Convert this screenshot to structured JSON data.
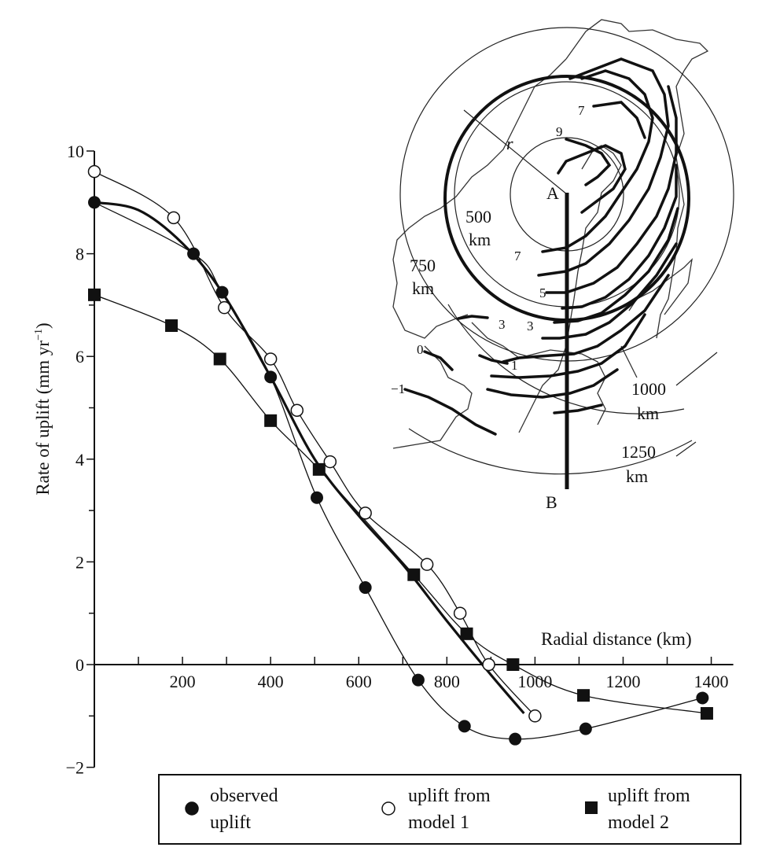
{
  "chart_data": {
    "type": "line",
    "title": "",
    "xlabel": "Radial distance (km)",
    "ylabel": "Rate of uplift (mm yr",
    "ylabel_sup": "−1",
    "ylabel_close": ")",
    "xlim": [
      0,
      1450
    ],
    "ylim": [
      -2,
      10
    ],
    "x_ticks": [
      200,
      400,
      600,
      800,
      1000,
      1200,
      1400
    ],
    "x_tick_labels": [
      "200",
      "400",
      "600",
      "800",
      "1000",
      "1200",
      "1400"
    ],
    "y_ticks": [
      10,
      8,
      6,
      4,
      2,
      0,
      -2
    ],
    "y_tick_labels": [
      "10",
      "8",
      "6",
      "4",
      "2",
      "0",
      "−2"
    ],
    "series": [
      {
        "name": "observed uplift",
        "marker": "filled-circle",
        "points": [
          [
            0,
            9.0
          ],
          [
            225,
            8.0
          ],
          [
            290,
            7.25
          ],
          [
            400,
            5.6
          ],
          [
            505,
            3.25
          ],
          [
            615,
            1.5
          ],
          [
            735,
            -0.3
          ],
          [
            840,
            -1.2
          ],
          [
            955,
            -1.45
          ],
          [
            1115,
            -1.25
          ],
          [
            1380,
            -0.65
          ]
        ]
      },
      {
        "name": "uplift from model 1",
        "marker": "open-circle",
        "points": [
          [
            0,
            9.6
          ],
          [
            180,
            8.7
          ],
          [
            295,
            6.95
          ],
          [
            400,
            5.95
          ],
          [
            460,
            4.95
          ],
          [
            535,
            3.95
          ],
          [
            615,
            2.95
          ],
          [
            755,
            1.95
          ],
          [
            830,
            1.0
          ],
          [
            895,
            0.0
          ],
          [
            1000,
            -1.0
          ]
        ]
      },
      {
        "name": "uplift from model 2",
        "marker": "filled-square",
        "points": [
          [
            0,
            7.2
          ],
          [
            175,
            6.6
          ],
          [
            285,
            5.95
          ],
          [
            400,
            4.75
          ],
          [
            510,
            3.8
          ],
          [
            725,
            1.75
          ],
          [
            845,
            0.6
          ],
          [
            950,
            0.0
          ],
          [
            1110,
            -0.6
          ],
          [
            1390,
            -0.95
          ]
        ]
      },
      {
        "name": "",
        "marker": "none",
        "style": "thick-line",
        "points": [
          [
            0,
            9.0
          ],
          [
            100,
            8.85
          ],
          [
            200,
            8.2
          ],
          [
            290,
            7.25
          ],
          [
            400,
            5.6
          ],
          [
            500,
            4.0
          ],
          [
            600,
            2.9
          ],
          [
            700,
            1.95
          ],
          [
            800,
            0.85
          ],
          [
            900,
            -0.2
          ],
          [
            975,
            -0.95
          ]
        ]
      }
    ],
    "legend": {
      "placement": "bottom",
      "entries": [
        {
          "marker": "filled-circle",
          "line1": "observed",
          "line2": "uplift"
        },
        {
          "marker": "open-circle",
          "line1": "uplift from",
          "line2": "model 1"
        },
        {
          "marker": "filled-square",
          "line1": "uplift from",
          "line2": "model 2"
        }
      ]
    },
    "inset_map": {
      "placement": "top-right",
      "ring_labels": [
        {
          "value": "500",
          "unit": "km"
        },
        {
          "value": "750",
          "unit": "km"
        },
        {
          "value": "1000",
          "unit": "km"
        },
        {
          "value": "1250",
          "unit": "km"
        }
      ],
      "radius_label": "r",
      "profile_labels": [
        "A",
        "B"
      ],
      "contour_labels": [
        "9",
        "7",
        "7",
        "5",
        "3",
        "3",
        "1",
        "0",
        "−1"
      ]
    }
  }
}
